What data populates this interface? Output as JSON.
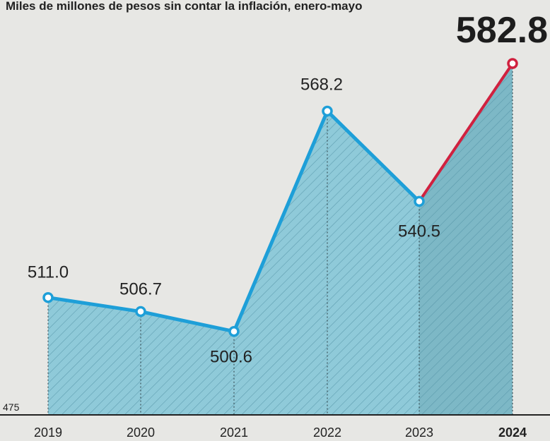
{
  "chart_data": {
    "type": "area",
    "subtitle": "Miles de millones de pesos sin contar la inflación, enero-mayo",
    "categories": [
      "2019",
      "2020",
      "2021",
      "2022",
      "2023",
      "2024"
    ],
    "values": [
      511.0,
      506.7,
      500.6,
      568.2,
      540.5,
      582.8
    ],
    "value_labels": [
      "511.0",
      "506.7",
      "500.6",
      "568.2",
      "540.5",
      "582.8"
    ],
    "y_baseline_label": "475",
    "ylim": [
      475,
      582.8
    ],
    "highlight_category": "2024",
    "colors": {
      "fill": "#8fcad9",
      "fill_highlight": "#7db8c6",
      "hatch": "#4f8fa2",
      "line": "#1e9fd8",
      "line_highlight": "#d0213f",
      "marker_fill": "#ffffff",
      "text": "#222222"
    }
  }
}
